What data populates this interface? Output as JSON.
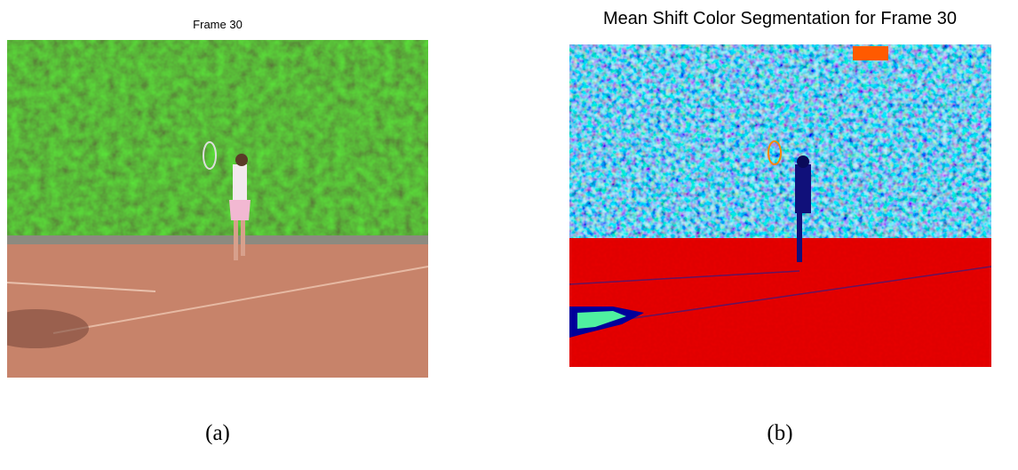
{
  "panels": [
    {
      "title": "Frame 30",
      "caption": "(a)"
    },
    {
      "title": "Mean Shift Color Segmentation for Frame 30",
      "caption": "(b)"
    }
  ]
}
